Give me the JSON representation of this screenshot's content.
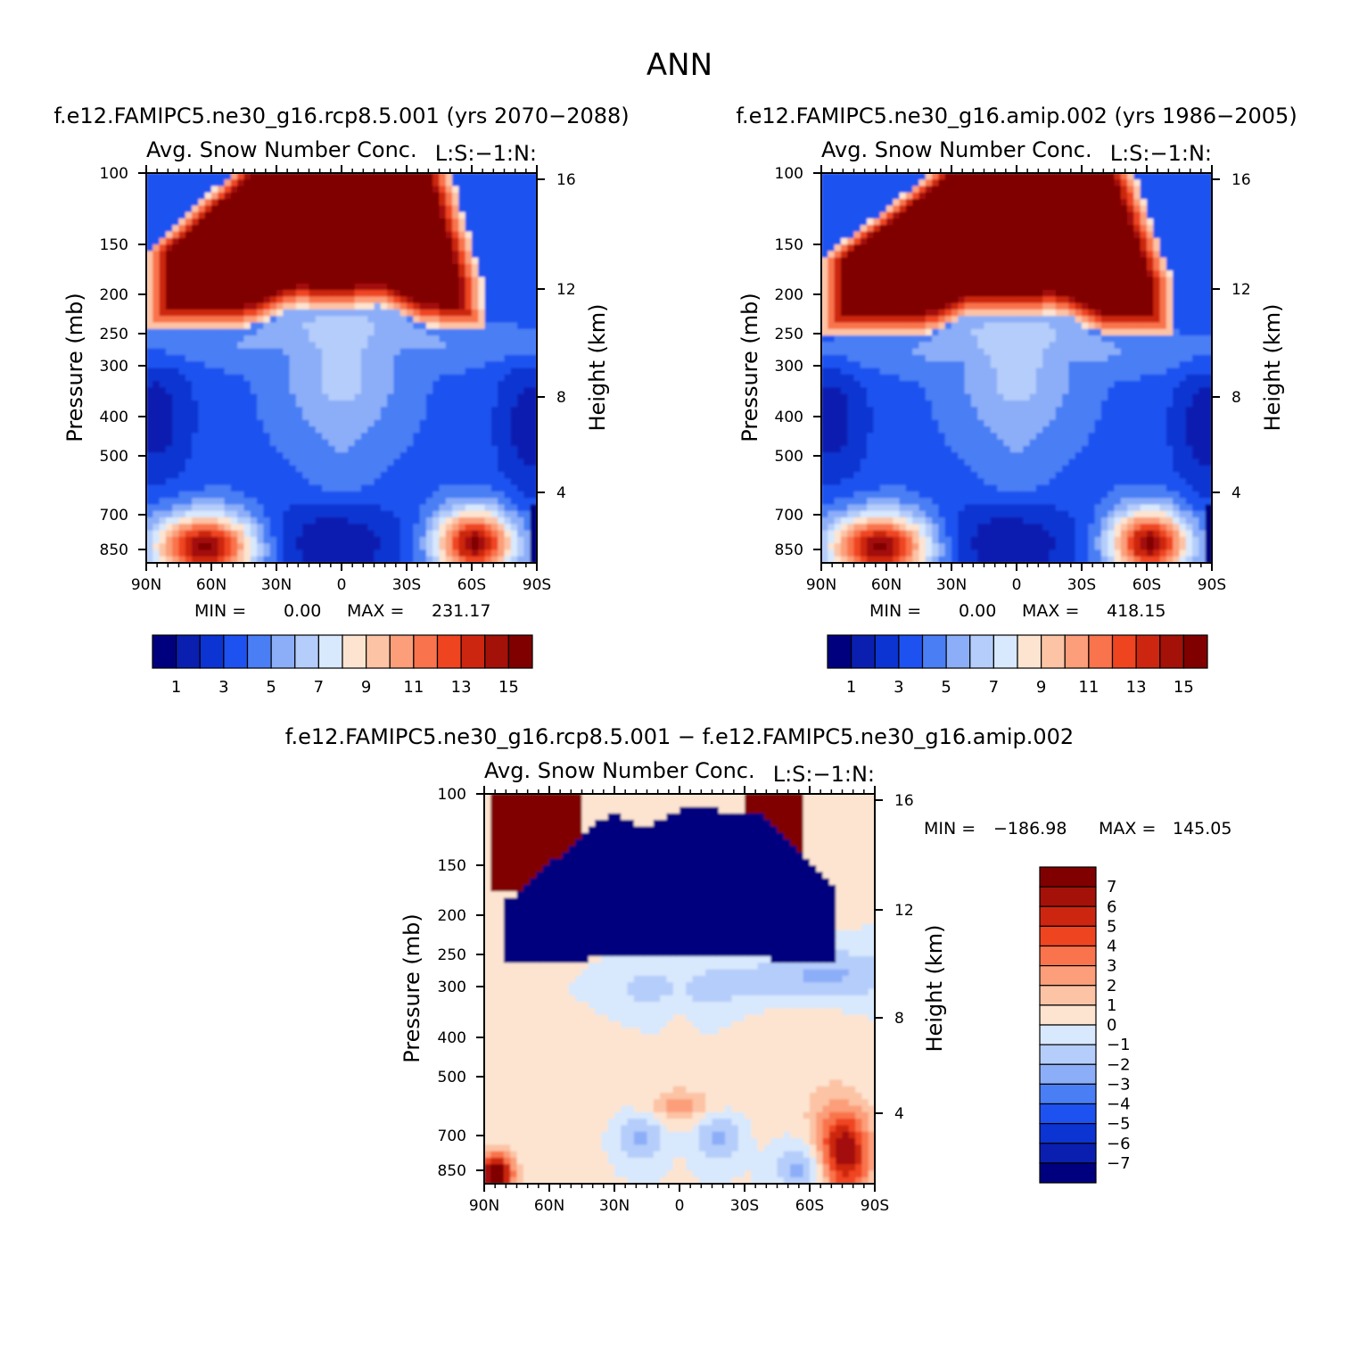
{
  "figure": {
    "title": "ANN",
    "diff_title": "f.e12.FAMIPC5.ne30_g16.rcp8.5.001 − f.e12.FAMIPC5.ne30_g16.amip.002"
  },
  "palette": {
    "abs": [
      "#00007f",
      "#0a1fb0",
      "#0c34d2",
      "#1e52f0",
      "#4a7ef5",
      "#8caef8",
      "#b5cdfa",
      "#d8e8fd",
      "#fde4d0",
      "#fcc3a5",
      "#fb9e79",
      "#f9734c",
      "#ef4420",
      "#cc2610",
      "#a31108",
      "#800000"
    ],
    "diff": [
      "#00007f",
      "#0a1fb0",
      "#0c34d2",
      "#1e52f0",
      "#4a7ef5",
      "#8caef8",
      "#b5cdfa",
      "#d8e8fd",
      "#fde4d0",
      "#fcc3a5",
      "#fb9e79",
      "#f9734c",
      "#ef4420",
      "#cc2610",
      "#a31108",
      "#800000"
    ]
  },
  "chart_data": [
    {
      "type": "heatmap",
      "case_title": "f.e12.FAMIPC5.ne30_g16.rcp8.5.001 (yrs 2070−2088)",
      "title": "Avg. Snow Number Conc.",
      "units": "L:S:−1:N:",
      "ylabel": "Pressure (mb)",
      "ylabel_right": "Height (km)",
      "x_ticks": [
        "90N",
        "60N",
        "30N",
        "0",
        "30S",
        "60S",
        "90S"
      ],
      "y_ticks": [
        "100",
        "150",
        "200",
        "250",
        "300",
        "400",
        "500",
        "700",
        "850"
      ],
      "y_right_ticks": [
        "16",
        "12",
        "8",
        "4"
      ],
      "ylim": [
        1000,
        100
      ],
      "min_label": "MIN =",
      "min_value": "0.00",
      "max_label": "MAX =",
      "max_value": "231.17",
      "colorbar_labels": [
        "1",
        "3",
        "5",
        "7",
        "9",
        "11",
        "13",
        "15"
      ],
      "levels": [
        1,
        2,
        3,
        4,
        5,
        6,
        7,
        8,
        9,
        10,
        11,
        12,
        13,
        14,
        15
      ],
      "max": 231.17,
      "min": 0.0
    },
    {
      "type": "heatmap",
      "case_title": "f.e12.FAMIPC5.ne30_g16.amip.002 (yrs 1986−2005)",
      "title": "Avg. Snow Number Conc.",
      "units": "L:S:−1:N:",
      "ylabel": "Pressure (mb)",
      "ylabel_right": "Height (km)",
      "x_ticks": [
        "90N",
        "60N",
        "30N",
        "0",
        "30S",
        "60S",
        "90S"
      ],
      "y_ticks": [
        "100",
        "150",
        "200",
        "250",
        "300",
        "400",
        "500",
        "700",
        "850"
      ],
      "y_right_ticks": [
        "16",
        "12",
        "8",
        "4"
      ],
      "ylim": [
        1000,
        100
      ],
      "min_label": "MIN =",
      "min_value": "0.00",
      "max_label": "MAX =",
      "max_value": "418.15",
      "colorbar_labels": [
        "1",
        "3",
        "5",
        "7",
        "9",
        "11",
        "13",
        "15"
      ],
      "levels": [
        1,
        2,
        3,
        4,
        5,
        6,
        7,
        8,
        9,
        10,
        11,
        12,
        13,
        14,
        15
      ],
      "max": 418.15,
      "min": 0.0
    },
    {
      "type": "heatmap",
      "title": "Avg. Snow Number Conc.",
      "units": "L:S:−1:N:",
      "ylabel": "Pressure (mb)",
      "ylabel_right": "Height (km)",
      "x_ticks": [
        "90N",
        "60N",
        "30N",
        "0",
        "30S",
        "60S",
        "90S"
      ],
      "y_ticks": [
        "100",
        "150",
        "200",
        "250",
        "300",
        "400",
        "500",
        "700",
        "850"
      ],
      "y_right_ticks": [
        "16",
        "12",
        "8",
        "4"
      ],
      "ylim": [
        1000,
        100
      ],
      "min_label": "MIN =",
      "min_value": "−186.98",
      "max_label": "MAX =",
      "max_value": "145.05",
      "colorbar_labels": [
        "7",
        "6",
        "5",
        "4",
        "3",
        "2",
        "1",
        "0",
        "−1",
        "−2",
        "−3",
        "−4",
        "−5",
        "−6",
        "−7"
      ],
      "levels": [
        -7,
        -6,
        -5,
        -4,
        -3,
        -2,
        -1,
        0,
        1,
        2,
        3,
        4,
        5,
        6,
        7
      ],
      "max": 145.05,
      "min": -186.98
    }
  ]
}
